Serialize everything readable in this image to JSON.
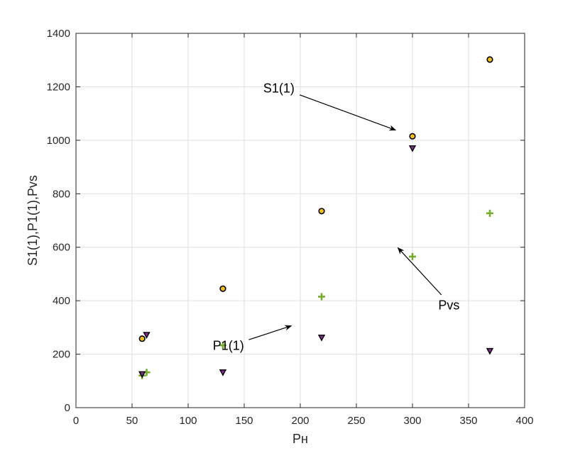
{
  "chart_data": {
    "type": "scatter",
    "xlabel": "Pн",
    "ylabel": "S1(1),P1(1),Pvs",
    "xlim": [
      0,
      400
    ],
    "ylim": [
      0,
      1400
    ],
    "xticks": [
      0,
      50,
      100,
      150,
      200,
      250,
      300,
      350,
      400
    ],
    "yticks": [
      0,
      200,
      400,
      600,
      800,
      1000,
      1200,
      1400
    ],
    "xtick_labels": [
      "0",
      "50",
      "100",
      "150",
      "200",
      "250",
      "300",
      "350",
      "400"
    ],
    "ytick_labels": [
      "0",
      "200",
      "400",
      "600",
      "800",
      "1000",
      "1200",
      "1400"
    ],
    "grid": true,
    "series": [
      {
        "marker": "circle",
        "color": "#f0c020",
        "edge_color": "#000000",
        "x": [
          59,
          131,
          219,
          300,
          369
        ],
        "y": [
          258,
          445,
          735,
          1015,
          1302
        ]
      },
      {
        "marker": "plus",
        "color": "#77ac30",
        "x": [
          59,
          63,
          131,
          219,
          300,
          369
        ],
        "y": [
          120,
          132,
          233,
          415,
          565,
          727
        ]
      },
      {
        "marker": "triangle-down",
        "color": "#7e2f8e",
        "edge_color": "#000000",
        "x": [
          59,
          63,
          131,
          219,
          300,
          369
        ],
        "y": [
          125,
          272,
          132,
          262,
          970,
          212
        ]
      }
    ],
    "annotations": [
      {
        "text": "S1(1)",
        "text_pos": [
          167,
          1195
        ],
        "arrow_to": [
          285,
          1038
        ]
      },
      {
        "text": "P1(1)",
        "text_pos": [
          122,
          232
        ],
        "arrow_to": [
          192,
          306
        ]
      },
      {
        "text": "Pvs",
        "text_pos": [
          323,
          383
        ],
        "arrow_to": [
          287,
          598
        ]
      }
    ]
  }
}
